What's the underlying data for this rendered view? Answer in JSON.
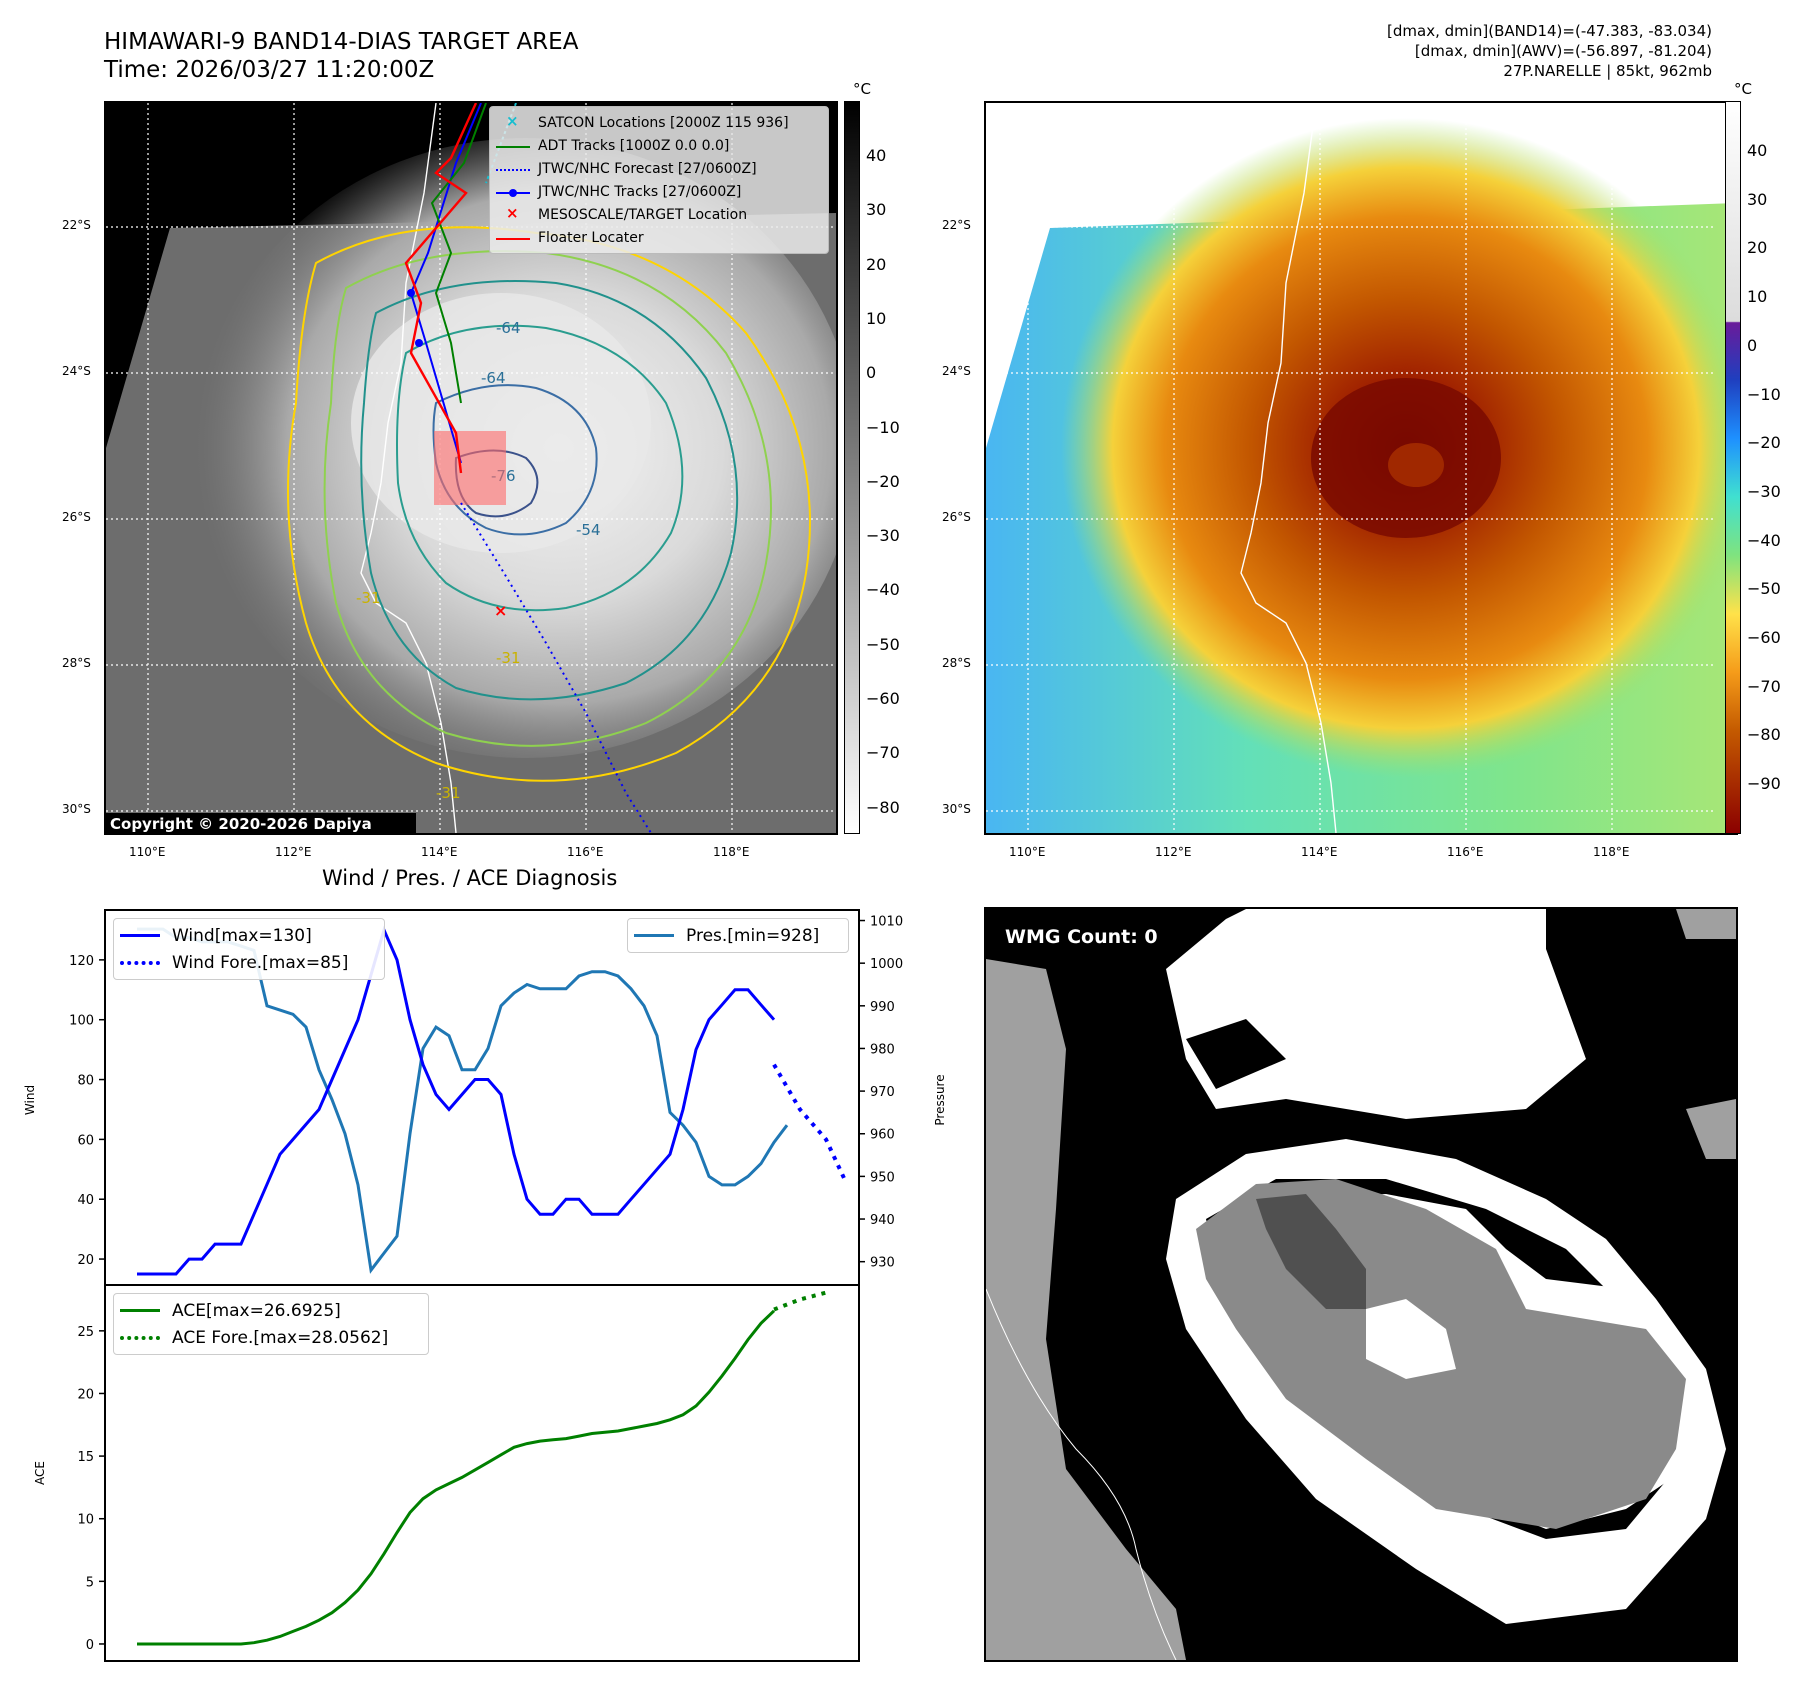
{
  "header": {
    "title_line1": "HIMAWARI-9 BAND14-DIAS TARGET AREA",
    "title_line2": "Time: 2026/03/27 11:20:00Z",
    "right_line1": "[dmax, dmin](BAND14)=(-47.383, -83.034)",
    "right_line2": "[dmax, dmin](AWV)=(-56.897, -81.204)",
    "right_line3": "27P.NARELLE | 85kt, 962mb"
  },
  "map": {
    "lat_labels": [
      "22°S",
      "24°S",
      "26°S",
      "28°S",
      "30°S"
    ],
    "lon_labels": [
      "110°E",
      "112°E",
      "114°E",
      "116°E",
      "118°E"
    ],
    "copyright": "Copyright © 2020-2026 Dapiya",
    "contour_labels": [
      "-64",
      "-64",
      "-76",
      "-54",
      "-31",
      "-31",
      "-31"
    ],
    "cbar_unit": "°C",
    "cbar_left_ticks": [
      "40",
      "30",
      "20",
      "10",
      "0",
      "−10",
      "−20",
      "−30",
      "−40",
      "−50",
      "−60",
      "−70",
      "−80"
    ],
    "cbar_right_ticks": [
      "40",
      "30",
      "20",
      "10",
      "0",
      "−10",
      "−20",
      "−30",
      "−40",
      "−50",
      "−60",
      "−70",
      "−80",
      "−90"
    ],
    "legend": [
      {
        "label": "SATCON Locations [2000Z 115 936]",
        "color": "#17becf",
        "kind": "x"
      },
      {
        "label": "ADT Tracks [1000Z 0.0 0.0]",
        "color": "#008000",
        "kind": "line"
      },
      {
        "label": "JTWC/NHC Forecast [27/0600Z]",
        "color": "#0000ff",
        "kind": "dotted"
      },
      {
        "label": "JTWC/NHC Tracks [27/0600Z]",
        "color": "#0000ff",
        "kind": "line-dot"
      },
      {
        "label": "MESOSCALE/TARGET Location",
        "color": "#ff0000",
        "kind": "x"
      },
      {
        "label": "Floater Locater",
        "color": "#ff0000",
        "kind": "line"
      }
    ]
  },
  "wmg": {
    "label": "WMG Count: 0"
  },
  "chart_data": [
    {
      "type": "line",
      "title": "Wind / Pres. / ACE Diagnosis",
      "ylabel": "Wind",
      "ylabel_right": "Pressure",
      "ylim": [
        12,
        136
      ],
      "ylim_right": [
        925,
        1012
      ],
      "y_ticks": [
        20,
        40,
        60,
        80,
        100,
        120
      ],
      "y_ticks_right": [
        930,
        940,
        950,
        960,
        970,
        980,
        990,
        1000,
        1010
      ],
      "legend_wind": "Wind[max=130]",
      "legend_wind_fore": "Wind Fore.[max=85]",
      "legend_pres": "Pres.[min=928]",
      "series": [
        {
          "name": "Wind",
          "color": "#0000ff",
          "style": "solid",
          "x": [
            0,
            1,
            2,
            3,
            4,
            5,
            6,
            7,
            8,
            9,
            10,
            11,
            12,
            13,
            14,
            15,
            16,
            17,
            18,
            19,
            20,
            21,
            22,
            23,
            24,
            25,
            26,
            27,
            28,
            29,
            30,
            31,
            32,
            33,
            34,
            35,
            36,
            37,
            38,
            39,
            40,
            41,
            42,
            43,
            44,
            45,
            46,
            47,
            48,
            49
          ],
          "values": [
            15,
            15,
            15,
            15,
            20,
            20,
            25,
            25,
            25,
            35,
            45,
            55,
            60,
            65,
            70,
            80,
            90,
            100,
            115,
            130,
            120,
            100,
            85,
            75,
            70,
            75,
            80,
            80,
            75,
            55,
            40,
            35,
            35,
            40,
            40,
            35,
            35,
            35,
            40,
            45,
            50,
            55,
            70,
            90,
            100,
            105,
            110,
            110,
            105,
            100
          ]
        },
        {
          "name": "Wind Fore.",
          "color": "#0000ff",
          "style": "dotted",
          "x": [
            49,
            51,
            53,
            54.5
          ],
          "values": [
            85,
            70,
            60,
            46
          ]
        },
        {
          "name": "Pres.",
          "color": "#1f77b4",
          "style": "solid",
          "axis": "right",
          "x": [
            0,
            1,
            2,
            3,
            4,
            5,
            6,
            7,
            8,
            9,
            10,
            11,
            12,
            13,
            14,
            15,
            16,
            17,
            18,
            19,
            20,
            21,
            22,
            23,
            24,
            25,
            26,
            27,
            28,
            29,
            30,
            31,
            32,
            33,
            34,
            35,
            36,
            37,
            38,
            39,
            40,
            41,
            42,
            43,
            44,
            45,
            46,
            47,
            48,
            49,
            50
          ],
          "values": [
            1008,
            1008,
            1008,
            1006,
            1006,
            1005,
            1005,
            1005,
            1004,
            1003,
            990,
            989,
            988,
            985,
            975,
            968,
            960,
            948,
            928,
            932,
            936,
            960,
            980,
            985,
            983,
            975,
            975,
            980,
            990,
            993,
            995,
            994,
            994,
            994,
            997,
            998,
            998,
            997,
            994,
            990,
            983,
            965,
            962,
            958,
            950,
            948,
            948,
            950,
            953,
            958,
            962
          ]
        }
      ]
    },
    {
      "type": "line",
      "ylabel": "ACE",
      "ylim": [
        -1.2,
        28.5
      ],
      "y_ticks": [
        0,
        5,
        10,
        15,
        20,
        25
      ],
      "legend_ace": "ACE[max=26.6925]",
      "legend_ace_fore": "ACE Fore.[max=28.0562]",
      "series": [
        {
          "name": "ACE",
          "color": "#008000",
          "style": "solid",
          "x": [
            0,
            2,
            4,
            6,
            8,
            9,
            10,
            11,
            12,
            13,
            14,
            15,
            16,
            17,
            18,
            19,
            20,
            21,
            22,
            23,
            24,
            25,
            26,
            27,
            28,
            29,
            30,
            31,
            32,
            33,
            34,
            35,
            36,
            37,
            38,
            39,
            40,
            41,
            42,
            43,
            44,
            45,
            46,
            47,
            48,
            49
          ],
          "values": [
            0,
            0,
            0,
            0,
            0,
            0.1,
            0.3,
            0.6,
            1.0,
            1.4,
            1.9,
            2.5,
            3.3,
            4.3,
            5.6,
            7.2,
            8.9,
            10.5,
            11.6,
            12.3,
            12.8,
            13.3,
            13.9,
            14.5,
            15.1,
            15.7,
            16.0,
            16.2,
            16.3,
            16.4,
            16.6,
            16.8,
            16.9,
            17.0,
            17.2,
            17.4,
            17.6,
            17.9,
            18.3,
            19.0,
            20.1,
            21.4,
            22.8,
            24.3,
            25.6,
            26.6
          ]
        },
        {
          "name": "ACE Fore.",
          "color": "#008000",
          "style": "dotted",
          "x": [
            49,
            51,
            53
          ],
          "values": [
            26.7,
            27.5,
            28.05
          ]
        }
      ]
    }
  ]
}
